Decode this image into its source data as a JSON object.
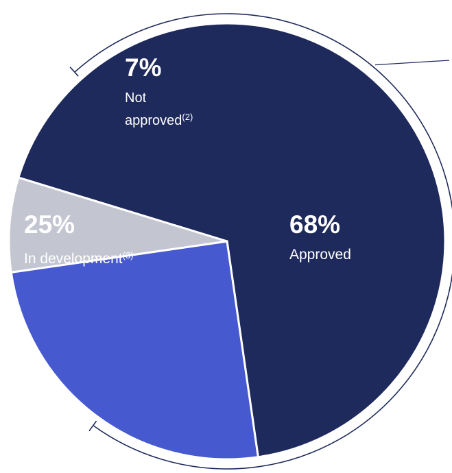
{
  "chart_data": {
    "type": "pie",
    "title": "",
    "slices": [
      {
        "value": 68,
        "percent_label": "68%",
        "label": "Approved",
        "note": "",
        "color": "#1f2a5c"
      },
      {
        "value": 25,
        "percent_label": "25%",
        "label": "In development",
        "note": "(3)",
        "color": "#4659cf"
      },
      {
        "value": 7,
        "percent_label": "7%",
        "label": "Not approved",
        "note": "(2)",
        "color": "#c3c6d1"
      }
    ],
    "label_lines": {
      "not_approved_line1": "Not",
      "not_approved_line2": "approved"
    },
    "colors": {
      "label_text_dark": "#ffffff",
      "label_text_light": "#ffffff",
      "outline": "#1f2a5c"
    }
  }
}
